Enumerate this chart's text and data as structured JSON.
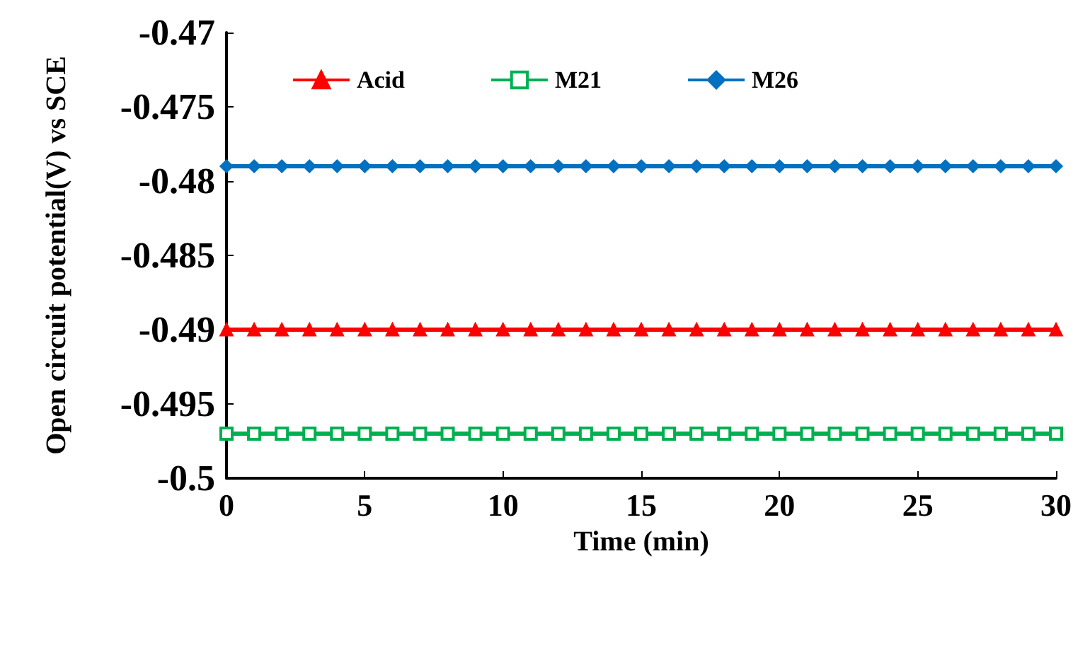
{
  "chart_data": {
    "type": "line",
    "xlabel": "Time (min)",
    "ylabel": "Open circuit potential(V) vs SCE",
    "x": [
      0,
      1,
      2,
      3,
      4,
      5,
      6,
      7,
      8,
      9,
      10,
      11,
      12,
      13,
      14,
      15,
      16,
      17,
      18,
      19,
      20,
      21,
      22,
      23,
      24,
      25,
      26,
      27,
      28,
      29,
      30
    ],
    "series": [
      {
        "name": "Acid",
        "color": "#ff0000",
        "marker": "triangle",
        "values": [
          -0.49,
          -0.49,
          -0.49,
          -0.49,
          -0.49,
          -0.49,
          -0.49,
          -0.49,
          -0.49,
          -0.49,
          -0.49,
          -0.49,
          -0.49,
          -0.49,
          -0.49,
          -0.49,
          -0.49,
          -0.49,
          -0.49,
          -0.49,
          -0.49,
          -0.49,
          -0.49,
          -0.49,
          -0.49,
          -0.49,
          -0.49,
          -0.49,
          -0.49,
          -0.49,
          -0.49
        ]
      },
      {
        "name": "M21",
        "color": "#00b050",
        "marker": "square",
        "values": [
          -0.497,
          -0.497,
          -0.497,
          -0.497,
          -0.497,
          -0.497,
          -0.497,
          -0.497,
          -0.497,
          -0.497,
          -0.497,
          -0.497,
          -0.497,
          -0.497,
          -0.497,
          -0.497,
          -0.497,
          -0.497,
          -0.497,
          -0.497,
          -0.497,
          -0.497,
          -0.497,
          -0.497,
          -0.497,
          -0.497,
          -0.497,
          -0.497,
          -0.497,
          -0.497,
          -0.497
        ]
      },
      {
        "name": "M26",
        "color": "#0070c0",
        "marker": "diamond",
        "values": [
          -0.479,
          -0.479,
          -0.479,
          -0.479,
          -0.479,
          -0.479,
          -0.479,
          -0.479,
          -0.479,
          -0.479,
          -0.479,
          -0.479,
          -0.479,
          -0.479,
          -0.479,
          -0.479,
          -0.479,
          -0.479,
          -0.479,
          -0.479,
          -0.479,
          -0.479,
          -0.479,
          -0.479,
          -0.479,
          -0.479,
          -0.479,
          -0.479,
          -0.479,
          -0.479,
          -0.479
        ]
      }
    ],
    "xlim": [
      0,
      30
    ],
    "xticks": [
      0,
      5,
      10,
      15,
      20,
      25,
      30
    ],
    "ylim": [
      -0.5,
      -0.47
    ],
    "yticks": [
      -0.5,
      -0.495,
      -0.49,
      -0.485,
      -0.48,
      -0.475,
      -0.47
    ],
    "grid": false,
    "legend": "top",
    "line_style": "solid"
  }
}
